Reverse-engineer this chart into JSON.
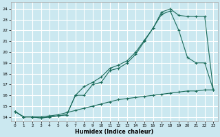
{
  "xlabel": "Humidex (Indice chaleur)",
  "bg_color": "#cbe8f0",
  "grid_color": "#ffffff",
  "line_color": "#1a6b5a",
  "xlim": [
    -0.5,
    23.5
  ],
  "ylim": [
    13.6,
    24.6
  ],
  "xticks": [
    0,
    1,
    2,
    3,
    4,
    5,
    6,
    7,
    8,
    9,
    10,
    11,
    12,
    13,
    14,
    15,
    16,
    17,
    18,
    19,
    20,
    21,
    22,
    23
  ],
  "yticks": [
    14,
    15,
    16,
    17,
    18,
    19,
    20,
    21,
    22,
    23,
    24
  ],
  "curve_top_x": [
    0,
    1,
    2,
    3,
    4,
    5,
    6,
    7,
    8,
    9,
    10,
    11,
    12,
    13,
    14,
    15,
    16,
    17,
    18,
    19,
    20,
    21,
    22,
    23
  ],
  "curve_top_y": [
    14.5,
    14.0,
    14.0,
    13.9,
    14.0,
    14.1,
    14.2,
    16.0,
    16.8,
    17.2,
    17.7,
    18.5,
    18.8,
    19.2,
    20.0,
    21.1,
    22.2,
    23.7,
    24.0,
    23.4,
    23.3,
    23.3,
    23.3,
    16.5
  ],
  "curve_mid_x": [
    0,
    1,
    2,
    3,
    4,
    5,
    6,
    7,
    8,
    9,
    10,
    11,
    12,
    13,
    14,
    15,
    16,
    17,
    18,
    19,
    20,
    21,
    22,
    23
  ],
  "curve_mid_y": [
    14.5,
    14.0,
    14.0,
    13.9,
    14.0,
    14.1,
    14.2,
    16.0,
    16.0,
    17.0,
    17.2,
    18.3,
    18.5,
    19.0,
    19.8,
    21.0,
    22.2,
    23.5,
    23.8,
    22.0,
    19.5,
    19.0,
    19.0,
    16.5
  ],
  "curve_bot_x": [
    0,
    1,
    2,
    3,
    4,
    5,
    6,
    7,
    8,
    9,
    10,
    11,
    12,
    13,
    14,
    15,
    16,
    17,
    18,
    19,
    20,
    21,
    22,
    23
  ],
  "curve_bot_y": [
    14.5,
    14.0,
    14.0,
    14.0,
    14.1,
    14.2,
    14.4,
    14.6,
    14.8,
    15.0,
    15.2,
    15.4,
    15.6,
    15.7,
    15.8,
    15.9,
    16.0,
    16.1,
    16.2,
    16.3,
    16.4,
    16.4,
    16.5,
    16.5
  ]
}
